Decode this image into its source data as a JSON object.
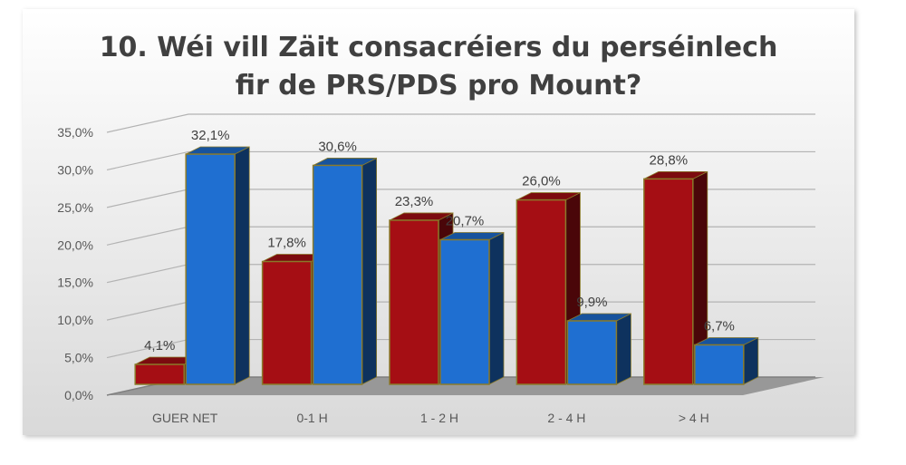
{
  "chart_data": {
    "type": "bar",
    "title": "10. Wéi vill Zäit consacréiers du perséinlech fir de PRS/PDS pro Mount?",
    "title_lines": [
      "10. Wéi vill Zäit consacréiers du perséinlech",
      "fir de PRS/PDS pro Mount?"
    ],
    "categories": [
      "GUER NET",
      "0-1 H",
      "1 - 2 H",
      "2 - 4 H",
      "> 4 H"
    ],
    "series": [
      {
        "values": [
          4.1,
          17.8,
          23.3,
          26.0,
          28.8
        ],
        "labels": [
          "4,1%",
          "17,8%",
          "23,3%",
          "26,0%",
          "28,8%"
        ],
        "color": "#a50e14"
      },
      {
        "values": [
          32.1,
          30.6,
          20.7,
          9.9,
          6.7
        ],
        "labels": [
          "32,1%",
          "30,6%",
          "20,7%",
          "9,9%",
          "6,7%"
        ],
        "color": "#1f6fd1"
      }
    ],
    "y_ticks": [
      "0,0%",
      "5,0%",
      "10,0%",
      "15,0%",
      "20,0%",
      "25,0%",
      "30,0%",
      "35,0%"
    ],
    "ylim": [
      0,
      35
    ],
    "grid": true,
    "style": "3d-clustered-column",
    "xlabel": "",
    "ylabel": ""
  }
}
